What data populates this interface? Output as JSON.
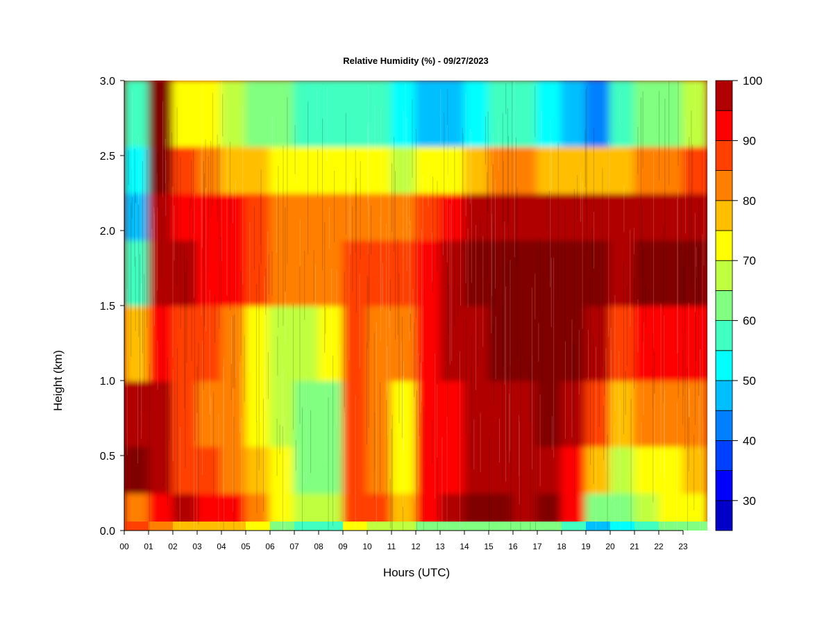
{
  "chart_data": {
    "type": "heatmap",
    "title": "Relative Humidity (%) - 09/27/2023",
    "xlabel": "Hours (UTC)",
    "ylabel": "Height (km)",
    "xlim": [
      0,
      24
    ],
    "ylim": [
      0.0,
      3.0
    ],
    "x_ticks": [
      "00",
      "01",
      "02",
      "03",
      "04",
      "05",
      "06",
      "07",
      "08",
      "09",
      "10",
      "11",
      "12",
      "13",
      "14",
      "15",
      "16",
      "17",
      "18",
      "19",
      "20",
      "21",
      "22",
      "23"
    ],
    "y_ticks": [
      "0.0",
      "0.5",
      "1.0",
      "1.5",
      "2.0",
      "2.5",
      "3.0"
    ],
    "height_levels_km": [
      0.125,
      0.375,
      0.75,
      1.25,
      1.75,
      2.125,
      2.375,
      2.75
    ],
    "hour_columns": [
      0,
      1,
      2,
      3,
      4,
      5,
      6,
      7,
      8,
      9,
      10,
      11,
      12,
      13,
      14,
      15,
      16,
      17,
      18,
      19,
      20,
      21,
      22,
      23
    ],
    "z_values": [
      [
        80,
        100,
        98,
        75,
        55,
        45,
        50,
        55
      ],
      [
        93,
        98,
        96,
        93,
        97,
        99,
        100,
        100
      ],
      [
        95,
        88,
        85,
        86,
        95,
        93,
        85,
        74
      ],
      [
        90,
        86,
        84,
        86,
        93,
        92,
        82,
        70
      ],
      [
        90,
        82,
        80,
        82,
        92,
        90,
        78,
        65
      ],
      [
        80,
        78,
        74,
        72,
        86,
        88,
        75,
        62
      ],
      [
        72,
        70,
        68,
        68,
        80,
        84,
        72,
        60
      ],
      [
        66,
        62,
        60,
        68,
        80,
        84,
        72,
        58
      ],
      [
        68,
        62,
        60,
        70,
        82,
        84,
        74,
        58
      ],
      [
        88,
        85,
        85,
        86,
        88,
        84,
        72,
        56
      ],
      [
        85,
        80,
        80,
        80,
        86,
        82,
        70,
        55
      ],
      [
        78,
        72,
        74,
        80,
        85,
        80,
        68,
        50
      ],
      [
        94,
        90,
        90,
        92,
        94,
        86,
        70,
        45
      ],
      [
        98,
        93,
        93,
        95,
        97,
        92,
        72,
        45
      ],
      [
        100,
        96,
        96,
        98,
        100,
        96,
        78,
        50
      ],
      [
        100,
        97,
        98,
        100,
        100,
        98,
        82,
        55
      ],
      [
        98,
        95,
        96,
        100,
        100,
        98,
        80,
        55
      ],
      [
        100,
        97,
        100,
        100,
        100,
        98,
        78,
        50
      ],
      [
        90,
        92,
        95,
        100,
        100,
        97,
        75,
        45
      ],
      [
        60,
        75,
        85,
        95,
        100,
        97,
        75,
        42
      ],
      [
        62,
        68,
        75,
        88,
        98,
        96,
        78,
        55
      ],
      [
        66,
        70,
        80,
        92,
        100,
        98,
        82,
        60
      ],
      [
        70,
        72,
        82,
        92,
        100,
        98,
        84,
        62
      ],
      [
        72,
        75,
        84,
        94,
        100,
        98,
        86,
        65
      ]
    ],
    "surface_row": [
      88,
      80,
      78,
      78,
      76,
      70,
      60,
      58,
      58,
      70,
      68,
      66,
      62,
      62,
      64,
      64,
      64,
      62,
      58,
      48,
      50,
      56,
      60,
      62
    ],
    "colorbar": {
      "levels": [
        25,
        30,
        35,
        40,
        45,
        50,
        55,
        60,
        65,
        70,
        75,
        80,
        85,
        90,
        95,
        100
      ],
      "colors": [
        "#00008B",
        "#0000C8",
        "#0000FF",
        "#0040FF",
        "#0080FF",
        "#00BFFF",
        "#00FFFF",
        "#40FFC0",
        "#80FF80",
        "#C0FF40",
        "#FFFF00",
        "#FFBF00",
        "#FF8000",
        "#FF4000",
        "#FF0000",
        "#B00000",
        "#800000"
      ],
      "tick_labels": [
        "30",
        "40",
        "50",
        "60",
        "70",
        "80",
        "90",
        "100"
      ]
    },
    "grid": false,
    "legend": "colorbar-right"
  }
}
